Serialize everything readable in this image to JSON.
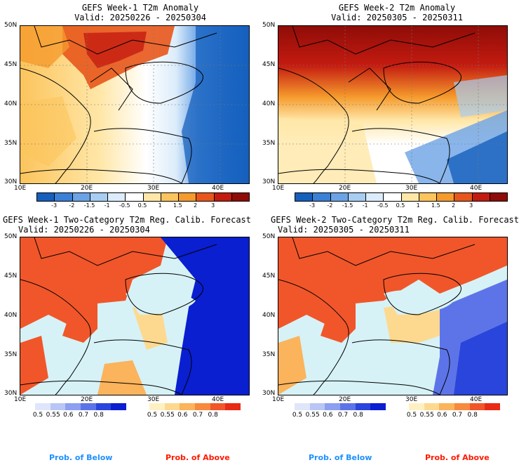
{
  "panels": [
    {
      "title": "GEFS Week-1 T2m Anomaly",
      "valid": "Valid: 20250226 - 20250304"
    },
    {
      "title": "GEFS Week-2 T2m Anomaly",
      "valid": "Valid: 20250305 - 20250311"
    },
    {
      "title": "GEFS Week-1 Two-Category T2m Reg. Calib. Forecast",
      "valid": "Valid: 20250226 - 20250304"
    },
    {
      "title": "GEFS Week-2 Two-Category T2m Reg. Calib. Forecast",
      "valid": "Valid: 20250305 - 20250311"
    }
  ],
  "lat_labels": [
    "50N",
    "45N",
    "40N",
    "35N",
    "30N"
  ],
  "lon_labels": [
    "10E",
    "20E",
    "30E",
    "40E"
  ],
  "anomaly_colorbar": {
    "ticks": [
      "-3",
      "-2",
      "-1.5",
      "-1",
      "-0.5",
      "0.5",
      "1",
      "1.5",
      "2",
      "3"
    ],
    "colors": [
      "#1560bd",
      "#3a80d6",
      "#6ba3e6",
      "#a8cdf2",
      "#dcecfa",
      "#ffffff",
      "#ffe7a8",
      "#fcc45c",
      "#f59a2c",
      "#e8561b",
      "#c41b10",
      "#8f0c08"
    ]
  },
  "prob_below": {
    "ticks": [
      "0.5",
      "0.55",
      "0.6",
      "0.7",
      "0.8"
    ],
    "colors": [
      "#dfe6fb",
      "#b9c6f5",
      "#8d9ff0",
      "#5d74e8",
      "#2a45db",
      "#0a1fd0"
    ],
    "caption": "Prob. of Below",
    "caption_color": "#1e90ff"
  },
  "prob_above": {
    "ticks": [
      "0.5",
      "0.55",
      "0.6",
      "0.7",
      "0.8"
    ],
    "colors": [
      "#fff0c2",
      "#fdd990",
      "#fbb35c",
      "#f78a3c",
      "#f0562a",
      "#e82a14"
    ],
    "caption": "Prob. of Above",
    "caption_color": "#ff1a00"
  },
  "ocean_color": "#d6f2f6"
}
